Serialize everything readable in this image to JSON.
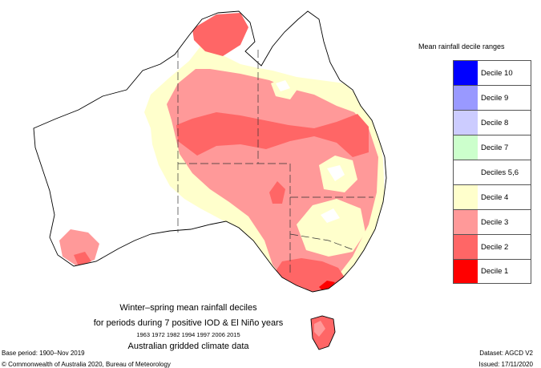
{
  "legend": {
    "title": "Mean rainfall decile ranges",
    "items": [
      {
        "label": "Decile 10",
        "color": "#0000ff"
      },
      {
        "label": "Decile 9",
        "color": "#9999ff"
      },
      {
        "label": "Decile 8",
        "color": "#ccccff"
      },
      {
        "label": "Decile 7",
        "color": "#ccffcc"
      },
      {
        "label": "Deciles 5,6",
        "color": "#ffffff"
      },
      {
        "label": "Decile 4",
        "color": "#ffffcc"
      },
      {
        "label": "Decile 3",
        "color": "#ff9999"
      },
      {
        "label": "Decile 2",
        "color": "#ff6666"
      },
      {
        "label": "Decile 1",
        "color": "#ff0000"
      }
    ]
  },
  "caption": {
    "line1": "Winter–spring mean rainfall deciles",
    "line2": "for periods during 7 positive IOD & El Niño years",
    "years": "1963 1972 1982 1994 1997 2006 2015",
    "line4": "Australian gridded climate data"
  },
  "footer": {
    "base_period": "Base period: 1900–Nov 2019",
    "copyright": "© Commonwealth of Australia 2020, Bureau of Meteorology",
    "dataset": "Dataset: AGCD V2",
    "issued": "Issued: 17/11/2020"
  }
}
